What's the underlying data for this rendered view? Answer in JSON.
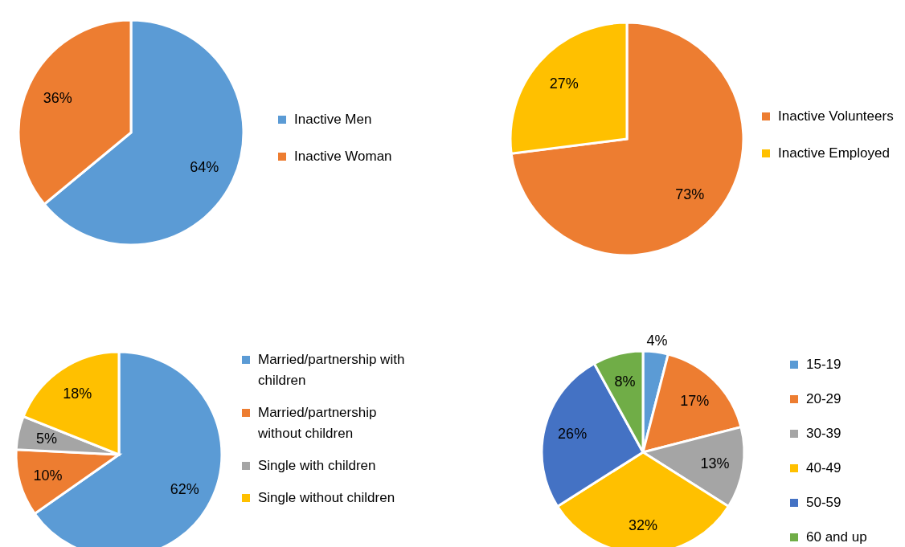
{
  "chart_data": [
    {
      "type": "pie",
      "categories": [
        "Inactive Men",
        "Inactive Woman"
      ],
      "values": [
        64,
        36
      ],
      "colors": [
        "#5b9bd5",
        "#ed7d31"
      ],
      "value_labels": [
        "64%",
        "36%"
      ],
      "legend": "right"
    },
    {
      "type": "pie",
      "categories": [
        "Inactive Volunteers",
        "Inactive Employed"
      ],
      "values": [
        73,
        27
      ],
      "colors": [
        "#ed7d31",
        "#ffc000"
      ],
      "value_labels": [
        "73%",
        "27%"
      ],
      "legend": "right"
    },
    {
      "type": "pie",
      "categories": [
        "Married/partnership with children",
        "Married/partnership without children",
        "Single with children",
        "Single without children"
      ],
      "values": [
        62,
        10,
        5,
        18
      ],
      "colors": [
        "#5b9bd5",
        "#ed7d31",
        "#a5a5a5",
        "#ffc000"
      ],
      "value_labels": [
        "62%",
        "10%",
        "5%",
        "18%"
      ],
      "legend": "right"
    },
    {
      "type": "pie",
      "categories": [
        "15-19",
        "20-29",
        "30-39",
        "40-49",
        "50-59",
        "60 and up"
      ],
      "values": [
        4,
        17,
        13,
        32,
        26,
        8
      ],
      "colors": [
        "#5b9bd5",
        "#ed7d31",
        "#a5a5a5",
        "#ffc000",
        "#4472c4",
        "#70ad47"
      ],
      "value_labels": [
        "4%",
        "17%",
        "13%",
        "32%",
        "26%",
        "8%"
      ],
      "legend": "right"
    }
  ]
}
